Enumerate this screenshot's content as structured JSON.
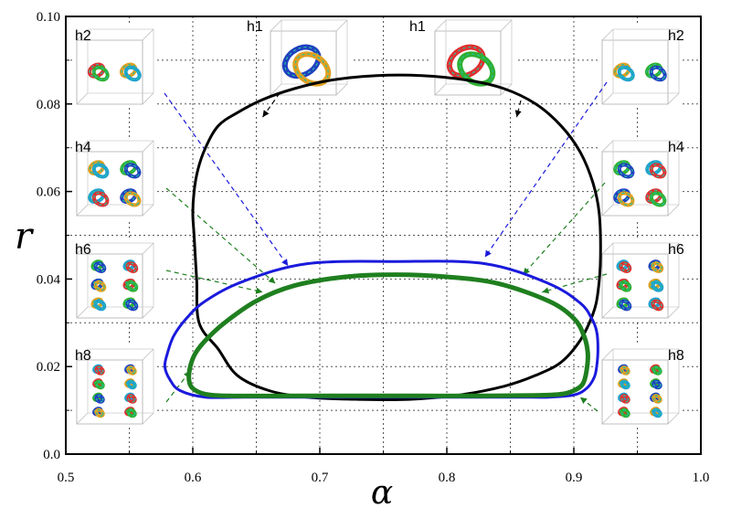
{
  "chart_data": {
    "type": "line",
    "xlabel": "α",
    "ylabel": "r",
    "xlim": [
      0.5,
      1.0
    ],
    "ylim": [
      0.0,
      0.1
    ],
    "grid": true,
    "x_ticks": [
      0.5,
      0.6,
      0.7,
      0.8,
      0.9,
      1.0
    ],
    "x_tick_labels": [
      "0.5",
      "0.6",
      "0.7",
      "0.8",
      "0.9",
      "1.0"
    ],
    "y_ticks": [
      0.0,
      0.02,
      0.04,
      0.06,
      0.08,
      0.1
    ],
    "y_tick_labels": [
      "0.0",
      "0.02",
      "0.04",
      "0.06",
      "0.08",
      "0.10"
    ],
    "colors": {
      "black": "#000000",
      "blue": "#1a1adc",
      "green": "#1f7f1f"
    },
    "series": [
      {
        "color": "black",
        "closed": true,
        "x": [
          0.605,
          0.603,
          0.601,
          0.6,
          0.601,
          0.604,
          0.61,
          0.62,
          0.635,
          0.655,
          0.68,
          0.71,
          0.745,
          0.78,
          0.815,
          0.845,
          0.87,
          0.89,
          0.905,
          0.915,
          0.92,
          0.921,
          0.919,
          0.915,
          0.905,
          0.89,
          0.87,
          0.845,
          0.81,
          0.77,
          0.73,
          0.69,
          0.66,
          0.635,
          0.62
        ],
        "y": [
          0.03,
          0.04,
          0.05,
          0.055,
          0.06,
          0.065,
          0.07,
          0.075,
          0.078,
          0.081,
          0.0835,
          0.0855,
          0.0865,
          0.0865,
          0.0855,
          0.0835,
          0.08,
          0.075,
          0.069,
          0.062,
          0.055,
          0.045,
          0.037,
          0.032,
          0.026,
          0.021,
          0.018,
          0.0155,
          0.0135,
          0.0125,
          0.0125,
          0.013,
          0.0145,
          0.018,
          0.024
        ]
      },
      {
        "color": "blue",
        "closed": true,
        "x": [
          0.58,
          0.578,
          0.582,
          0.59,
          0.61,
          0.64,
          0.68,
          0.73,
          0.78,
          0.83,
          0.86,
          0.88,
          0.9,
          0.91,
          0.916,
          0.918,
          0.919,
          0.918,
          0.914,
          0.905,
          0.88,
          0.83,
          0.76,
          0.69,
          0.64,
          0.61,
          0.595,
          0.585
        ],
        "y": [
          0.023,
          0.02,
          0.017,
          0.0145,
          0.013,
          0.013,
          0.013,
          0.013,
          0.013,
          0.013,
          0.013,
          0.013,
          0.0135,
          0.015,
          0.0175,
          0.02,
          0.024,
          0.028,
          0.031,
          0.0345,
          0.039,
          0.0435,
          0.044,
          0.0435,
          0.0395,
          0.035,
          0.031,
          0.027
        ]
      },
      {
        "color": "green",
        "closed": true,
        "x": [
          0.598,
          0.597,
          0.6,
          0.61,
          0.63,
          0.68,
          0.73,
          0.78,
          0.83,
          0.87,
          0.89,
          0.9,
          0.907,
          0.91,
          0.911,
          0.908,
          0.9,
          0.88,
          0.84,
          0.8,
          0.76,
          0.72,
          0.68,
          0.65,
          0.625,
          0.61,
          0.602
        ],
        "y": [
          0.02,
          0.017,
          0.015,
          0.0137,
          0.0133,
          0.0133,
          0.0133,
          0.0133,
          0.0133,
          0.0134,
          0.0137,
          0.0145,
          0.016,
          0.019,
          0.023,
          0.027,
          0.031,
          0.035,
          0.039,
          0.0405,
          0.041,
          0.0405,
          0.0385,
          0.035,
          0.03,
          0.026,
          0.023
        ]
      }
    ],
    "insets": [
      {
        "label": "h2",
        "side": "left",
        "row": 0,
        "knots": 2
      },
      {
        "label": "h4",
        "side": "left",
        "row": 1,
        "knots": 4
      },
      {
        "label": "h6",
        "side": "left",
        "row": 2,
        "knots": 6
      },
      {
        "label": "h8",
        "side": "left",
        "row": 3,
        "knots": 8
      },
      {
        "label": "h1",
        "side": "top-left",
        "knots": 1
      },
      {
        "label": "h1",
        "side": "top-right",
        "knots": 1
      },
      {
        "label": "h2",
        "side": "right",
        "row": 0,
        "knots": 2
      },
      {
        "label": "h4",
        "side": "right",
        "row": 1,
        "knots": 4
      },
      {
        "label": "h6",
        "side": "right",
        "row": 2,
        "knots": 6
      },
      {
        "label": "h8",
        "side": "right",
        "row": 3,
        "knots": 8
      }
    ],
    "annotations": [
      {
        "from": "h1-left",
        "to": [
          0.655,
          0.077
        ],
        "color": "black"
      },
      {
        "from": "h1-right",
        "to": [
          0.855,
          0.077
        ],
        "color": "black"
      },
      {
        "from": "h2-left",
        "to": [
          0.675,
          0.043
        ],
        "color": "blue"
      },
      {
        "from": "h2-right",
        "to": [
          0.83,
          0.045
        ],
        "color": "blue"
      },
      {
        "from": "h4-left",
        "to": [
          0.665,
          0.039
        ],
        "color": "green"
      },
      {
        "from": "h4-right",
        "to": [
          0.86,
          0.041
        ],
        "color": "green"
      },
      {
        "from": "h6-left",
        "to": [
          0.655,
          0.037
        ],
        "color": "green"
      },
      {
        "from": "h6-right",
        "to": [
          0.875,
          0.037
        ],
        "color": "green"
      },
      {
        "from": "h8-left",
        "to": [
          0.598,
          0.019
        ],
        "color": "green"
      },
      {
        "from": "h8-right",
        "to": [
          0.905,
          0.013
        ],
        "color": "green"
      }
    ]
  }
}
